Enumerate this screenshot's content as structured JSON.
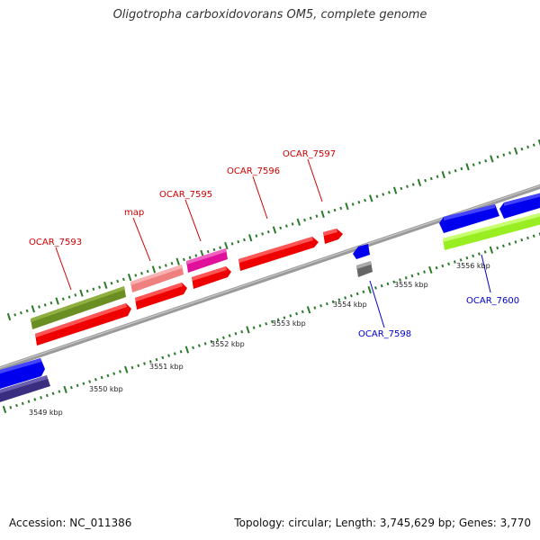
{
  "title": "Oligotropha carboxidovorans OM5, complete genome",
  "footer": {
    "accession": "Accession: NC_011386",
    "summary": "Topology: circular; Length: 3,745,629 bp; Genes: 3,770"
  },
  "colors": {
    "forward_label": "#cc0000",
    "reverse_label": "#0000cc",
    "tick": "#2a7a2a",
    "backbone": "#888888"
  },
  "scale_labels": [
    "3549 kbp",
    "3550 kbp",
    "3551 kbp",
    "3552 kbp",
    "3553 kbp",
    "3554 kbp",
    "3555 kbp",
    "3556 kbp"
  ],
  "gene_labels": [
    {
      "name": "OCAR_7593",
      "strand": "forward"
    },
    {
      "name": "map",
      "strand": "forward"
    },
    {
      "name": "OCAR_7595",
      "strand": "forward"
    },
    {
      "name": "OCAR_7596",
      "strand": "forward"
    },
    {
      "name": "OCAR_7597",
      "strand": "forward"
    },
    {
      "name": "OCAR_7598",
      "strand": "reverse"
    },
    {
      "name": "OCAR_7600",
      "strand": "reverse"
    }
  ]
}
